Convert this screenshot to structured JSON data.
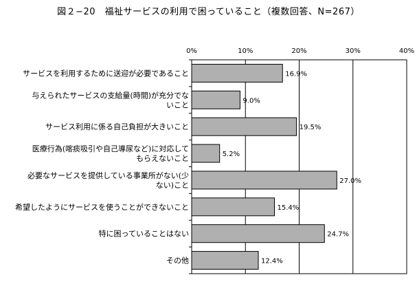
{
  "chart_data": {
    "type": "bar",
    "orientation": "horizontal",
    "title": "図２−20　福祉サービスの利用で困っていること（複数回答、N=267）",
    "xlim": [
      0,
      40
    ],
    "x_ticks": [
      0,
      10,
      20,
      30,
      40
    ],
    "tick_labels": [
      "0%",
      "10%",
      "20%",
      "30%",
      "40%"
    ],
    "grid": true,
    "bar_color": "#b0b0b0",
    "categories": [
      [
        "サービスを利用するために送迎が必要であること"
      ],
      [
        "与えられたサービスの支給量(時間)が充分でな",
        "いこと"
      ],
      [
        "サービス利用に係る自己負担が大きいこと"
      ],
      [
        "医療行為(喀痰吸引や自己導尿など)に対応して",
        "もらえないこと"
      ],
      [
        "必要なサービスを提供している事業所がない(少",
        "ない)こと"
      ],
      [
        "希望したようにサービスを使うことができないこと"
      ],
      [
        "特に困っていることはない"
      ],
      [
        "その他"
      ]
    ],
    "values": [
      16.9,
      9.0,
      19.5,
      5.2,
      27.0,
      15.4,
      24.7,
      12.4
    ],
    "value_labels": [
      "16.9%",
      "9.0%",
      "19.5%",
      "5.2%",
      "27.0%",
      "15.4%",
      "24.7%",
      "12.4%"
    ]
  }
}
